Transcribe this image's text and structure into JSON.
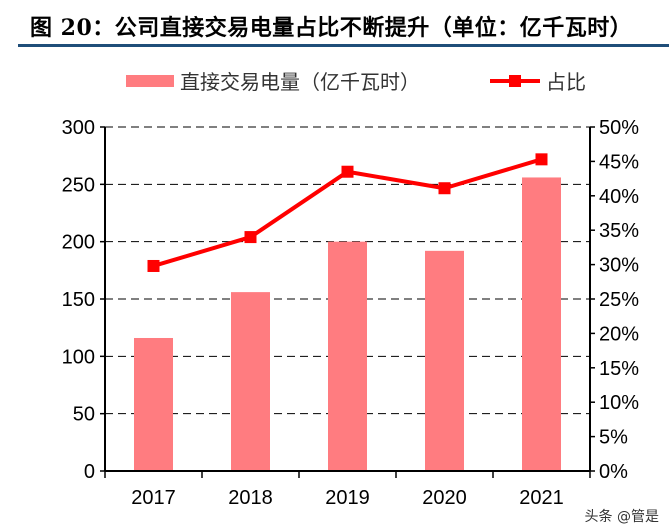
{
  "title": "图 20：公司直接交易电量占比不断提升（单位：亿千瓦时）",
  "watermark": "头条 @管是",
  "chart_data": {
    "type": "bar+line",
    "categories": [
      "2017",
      "2018",
      "2019",
      "2020",
      "2021"
    ],
    "series": [
      {
        "name": "直接交易电量（亿千瓦时）",
        "type": "bar",
        "axis": "left",
        "color": "#ff7c80",
        "values": [
          116,
          156,
          200,
          192,
          256
        ]
      },
      {
        "name": "占比",
        "type": "line",
        "axis": "right",
        "color": "#ff0000",
        "marker": "square",
        "values": [
          29.8,
          34.0,
          43.5,
          41.1,
          45.3
        ]
      }
    ],
    "ylim_left": [
      0,
      300
    ],
    "yticks_left": [
      "0",
      "50",
      "100",
      "150",
      "200",
      "250",
      "300"
    ],
    "ylim_right": [
      0,
      50
    ],
    "yticks_right": [
      "0%",
      "5%",
      "10%",
      "15%",
      "20%",
      "25%",
      "30%",
      "35%",
      "40%",
      "45%",
      "50%"
    ],
    "grid": "horizontal dashed",
    "legend": "top"
  }
}
